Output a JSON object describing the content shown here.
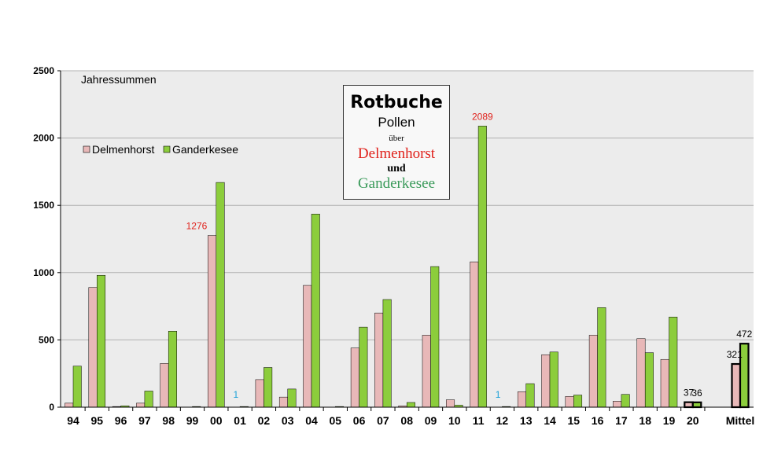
{
  "colors": {
    "delmenhorst": "#e8b8b8",
    "ganderkesee": "#8ccd3c",
    "plot_bg": "#ececec",
    "grid": "#b0b0b0",
    "label_red": "#e0201a",
    "label_blue": "#1aa0d8",
    "title_red": "#e0201a",
    "title_green": "#3a9a5a"
  },
  "title_box": {
    "line1": "Rotbuche",
    "line2": "Pollen",
    "line3": "über",
    "line4": "Delmenhorst",
    "line5": "und",
    "line6": "Ganderkesee"
  },
  "subtitle": "Jahressummen",
  "chart_data": {
    "type": "bar",
    "title": "Rotbuche Pollen über Delmenhorst und Ganderkesee",
    "subtitle": "Jahressummen",
    "xlabel": "",
    "ylabel": "",
    "ylim": [
      0,
      2500
    ],
    "yticks": [
      0,
      500,
      1000,
      1500,
      2000,
      2500
    ],
    "grid": true,
    "legend_position": "top-left",
    "categories": [
      "94",
      "95",
      "96",
      "97",
      "98",
      "99",
      "00",
      "01",
      "02",
      "03",
      "04",
      "05",
      "06",
      "07",
      "08",
      "09",
      "10",
      "11",
      "12",
      "13",
      "14",
      "15",
      "16",
      "17",
      "18",
      "19",
      "20",
      "Mittel"
    ],
    "series": [
      {
        "name": "Delmenhorst",
        "values": [
          30,
          890,
          5,
          30,
          325,
          0,
          1276,
          1,
          205,
          75,
          905,
          0,
          440,
          700,
          10,
          535,
          55,
          1080,
          1,
          115,
          390,
          80,
          535,
          45,
          510,
          355,
          37,
          321
        ]
      },
      {
        "name": "Ganderkesee",
        "values": [
          305,
          980,
          10,
          120,
          565,
          5,
          1670,
          5,
          295,
          135,
          1435,
          5,
          595,
          800,
          35,
          1045,
          15,
          2089,
          5,
          175,
          410,
          90,
          740,
          95,
          405,
          670,
          36,
          472
        ]
      }
    ],
    "data_labels": [
      {
        "category": "00",
        "series": "Delmenhorst",
        "text": "1276",
        "color": "#e0201a"
      },
      {
        "category": "01",
        "series": "Delmenhorst",
        "text": "1",
        "color": "#1aa0d8"
      },
      {
        "category": "11",
        "series": "Ganderkesee",
        "text": "2089",
        "color": "#e0201a"
      },
      {
        "category": "12",
        "series": "Delmenhorst",
        "text": "1",
        "color": "#1aa0d8"
      },
      {
        "category": "20",
        "series": "Delmenhorst",
        "text": "37",
        "color": "#000000"
      },
      {
        "category": "20",
        "series": "Ganderkesee",
        "text": "36",
        "color": "#000000"
      },
      {
        "category": "Mittel",
        "series": "Delmenhorst",
        "text": "321",
        "color": "#000000"
      },
      {
        "category": "Mittel",
        "series": "Ganderkesee",
        "text": "472",
        "color": "#000000"
      }
    ],
    "highlighted_categories": [
      "20",
      "Mittel"
    ]
  }
}
